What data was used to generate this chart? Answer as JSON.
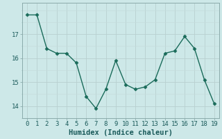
{
  "x": [
    0,
    1,
    2,
    3,
    4,
    5,
    6,
    7,
    8,
    9,
    10,
    11,
    12,
    13,
    14,
    15,
    16,
    17,
    18,
    19
  ],
  "y": [
    17.8,
    17.8,
    16.4,
    16.2,
    16.2,
    15.8,
    14.4,
    13.9,
    14.7,
    15.9,
    14.9,
    14.7,
    14.8,
    15.1,
    16.2,
    16.3,
    16.9,
    16.4,
    15.1,
    14.1
  ],
  "line_color": "#1a6b5a",
  "marker": "D",
  "marker_size": 2.5,
  "bg_color": "#cde8e8",
  "plot_bg_color": "#cde8e8",
  "grid_color_major": "#b8d0d0",
  "grid_color_minor": "#c5dcdc",
  "xlabel": "Humidex (Indice chaleur)",
  "ylim": [
    13.5,
    18.3
  ],
  "yticks": [
    14,
    15,
    16,
    17
  ],
  "xticks": [
    0,
    1,
    2,
    3,
    4,
    5,
    6,
    7,
    8,
    9,
    10,
    11,
    12,
    13,
    14,
    15,
    16,
    17,
    18,
    19
  ],
  "xlabel_fontsize": 7.5,
  "tick_fontsize": 6.5,
  "line_width": 1.0
}
